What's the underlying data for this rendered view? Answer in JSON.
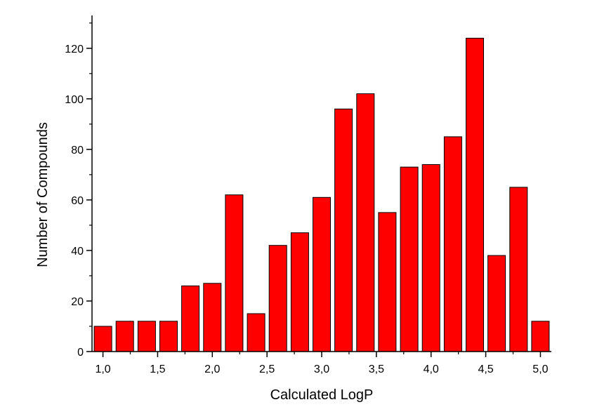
{
  "chart_data": {
    "type": "bar",
    "title": "",
    "xlabel": "Calculated LogP",
    "ylabel": "Number of Compounds",
    "x": [
      1.0,
      1.2,
      1.4,
      1.6,
      1.8,
      2.0,
      2.2,
      2.4,
      2.6,
      2.8,
      3.0,
      3.2,
      3.4,
      3.6,
      3.8,
      4.0,
      4.2,
      4.4,
      4.6,
      4.8,
      5.0
    ],
    "values": [
      10,
      12,
      12,
      12,
      26,
      27,
      62,
      15,
      42,
      47,
      61,
      96,
      102,
      55,
      73,
      74,
      85,
      124,
      38,
      65,
      12
    ],
    "xlim": [
      0.9,
      5.1
    ],
    "ylim": [
      0,
      133
    ],
    "x_ticks": [
      1.0,
      1.5,
      2.0,
      2.5,
      3.0,
      3.5,
      4.0,
      4.5,
      5.0
    ],
    "x_tick_labels": [
      "1,0",
      "1,5",
      "2,0",
      "2,5",
      "3,0",
      "3,5",
      "4,0",
      "4,5",
      "5,0"
    ],
    "y_ticks": [
      0,
      20,
      40,
      60,
      80,
      100,
      120
    ],
    "y_tick_labels": [
      "0",
      "20",
      "40",
      "60",
      "80",
      "100",
      "120"
    ],
    "bar_color": "#ff0000",
    "bar_edge_color": "#000000",
    "grid": false,
    "legend": "none"
  }
}
